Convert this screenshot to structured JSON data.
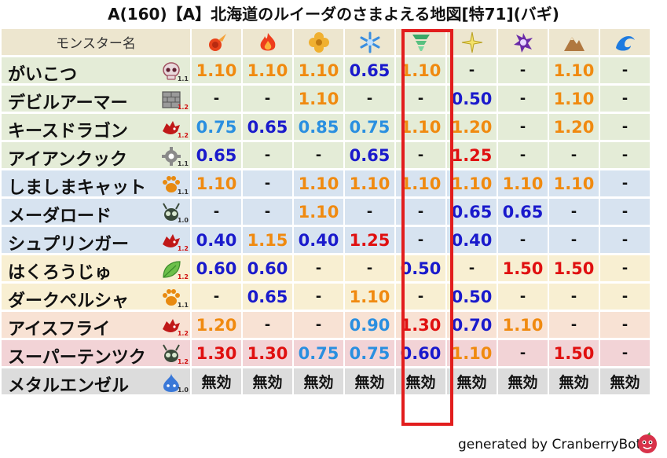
{
  "title": "A(160)【A】北海道のルイーダのさまよえる地図[特71](バギ)",
  "header": {
    "name_label": "モンスター名",
    "element_icons": [
      "fire-icon",
      "flame-icon",
      "clover-icon",
      "snowflake-icon",
      "tornado-icon",
      "sparkle-icon",
      "dark-swirl-icon",
      "mountain-icon",
      "wave-icon"
    ]
  },
  "rows": [
    {
      "name": "がいこつ",
      "type_icon": "skull-icon",
      "type_value": "1.1",
      "type_red": false,
      "bg": "green",
      "values": [
        {
          "t": "1.10",
          "c": "orange"
        },
        {
          "t": "1.10",
          "c": "orange"
        },
        {
          "t": "1.10",
          "c": "orange"
        },
        {
          "t": "0.65",
          "c": "navy"
        },
        {
          "t": "1.10",
          "c": "orange"
        },
        {
          "t": "-",
          "c": "dash"
        },
        {
          "t": "-",
          "c": "dash"
        },
        {
          "t": "1.10",
          "c": "orange"
        },
        {
          "t": "-",
          "c": "dash"
        }
      ]
    },
    {
      "name": "デビルアーマー",
      "type_icon": "brick-icon",
      "type_value": "1.2",
      "type_red": true,
      "bg": "green",
      "values": [
        {
          "t": "-",
          "c": "dash"
        },
        {
          "t": "-",
          "c": "dash"
        },
        {
          "t": "1.10",
          "c": "orange"
        },
        {
          "t": "-",
          "c": "dash"
        },
        {
          "t": "-",
          "c": "dash"
        },
        {
          "t": "0.50",
          "c": "navy"
        },
        {
          "t": "-",
          "c": "dash"
        },
        {
          "t": "1.10",
          "c": "orange"
        },
        {
          "t": "-",
          "c": "dash"
        }
      ]
    },
    {
      "name": "キースドラゴン",
      "type_icon": "dragon-icon",
      "type_value": "1.2",
      "type_red": true,
      "bg": "green",
      "values": [
        {
          "t": "0.75",
          "c": "sky"
        },
        {
          "t": "0.65",
          "c": "navy"
        },
        {
          "t": "0.85",
          "c": "sky"
        },
        {
          "t": "0.75",
          "c": "sky"
        },
        {
          "t": "1.10",
          "c": "orange"
        },
        {
          "t": "1.20",
          "c": "orange"
        },
        {
          "t": "-",
          "c": "dash"
        },
        {
          "t": "1.20",
          "c": "orange"
        },
        {
          "t": "-",
          "c": "dash"
        }
      ]
    },
    {
      "name": "アイアンクック",
      "type_icon": "gear-icon",
      "type_value": "1.1",
      "type_red": false,
      "bg": "green",
      "values": [
        {
          "t": "0.65",
          "c": "navy"
        },
        {
          "t": "-",
          "c": "dash"
        },
        {
          "t": "-",
          "c": "dash"
        },
        {
          "t": "0.65",
          "c": "navy"
        },
        {
          "t": "-",
          "c": "dash"
        },
        {
          "t": "1.25",
          "c": "red"
        },
        {
          "t": "-",
          "c": "dash"
        },
        {
          "t": "-",
          "c": "dash"
        },
        {
          "t": "-",
          "c": "dash"
        }
      ]
    },
    {
      "name": "しましまキャット",
      "type_icon": "paw-icon",
      "type_value": "1.1",
      "type_red": false,
      "bg": "blue",
      "values": [
        {
          "t": "1.10",
          "c": "orange"
        },
        {
          "t": "-",
          "c": "dash"
        },
        {
          "t": "1.10",
          "c": "orange"
        },
        {
          "t": "1.10",
          "c": "orange"
        },
        {
          "t": "1.10",
          "c": "orange"
        },
        {
          "t": "1.10",
          "c": "orange"
        },
        {
          "t": "1.10",
          "c": "orange"
        },
        {
          "t": "1.10",
          "c": "orange"
        },
        {
          "t": "-",
          "c": "dash"
        }
      ]
    },
    {
      "name": "メーダロード",
      "type_icon": "insect-icon",
      "type_value": "1.0",
      "type_red": false,
      "bg": "blue",
      "values": [
        {
          "t": "-",
          "c": "dash"
        },
        {
          "t": "-",
          "c": "dash"
        },
        {
          "t": "1.10",
          "c": "orange"
        },
        {
          "t": "-",
          "c": "dash"
        },
        {
          "t": "-",
          "c": "dash"
        },
        {
          "t": "0.65",
          "c": "navy"
        },
        {
          "t": "0.65",
          "c": "navy"
        },
        {
          "t": "-",
          "c": "dash"
        },
        {
          "t": "-",
          "c": "dash"
        }
      ]
    },
    {
      "name": "シュプリンガー",
      "type_icon": "dragon-icon",
      "type_value": "1.2",
      "type_red": true,
      "bg": "blue",
      "values": [
        {
          "t": "0.40",
          "c": "navy"
        },
        {
          "t": "1.15",
          "c": "orange"
        },
        {
          "t": "0.40",
          "c": "navy"
        },
        {
          "t": "1.25",
          "c": "red"
        },
        {
          "t": "-",
          "c": "dash"
        },
        {
          "t": "0.40",
          "c": "navy"
        },
        {
          "t": "-",
          "c": "dash"
        },
        {
          "t": "-",
          "c": "dash"
        },
        {
          "t": "-",
          "c": "dash"
        }
      ]
    },
    {
      "name": "はくろうじゅ",
      "type_icon": "leaf-icon",
      "type_value": "1.2",
      "type_red": true,
      "bg": "yellow",
      "values": [
        {
          "t": "0.60",
          "c": "navy"
        },
        {
          "t": "0.60",
          "c": "navy"
        },
        {
          "t": "-",
          "c": "dash"
        },
        {
          "t": "-",
          "c": "dash"
        },
        {
          "t": "0.50",
          "c": "navy"
        },
        {
          "t": "-",
          "c": "dash"
        },
        {
          "t": "1.50",
          "c": "red"
        },
        {
          "t": "1.50",
          "c": "red"
        },
        {
          "t": "-",
          "c": "dash"
        }
      ]
    },
    {
      "name": "ダークペルシャ",
      "type_icon": "paw-icon",
      "type_value": "1.1",
      "type_red": false,
      "bg": "yellow",
      "values": [
        {
          "t": "-",
          "c": "dash"
        },
        {
          "t": "0.65",
          "c": "navy"
        },
        {
          "t": "-",
          "c": "dash"
        },
        {
          "t": "1.10",
          "c": "orange"
        },
        {
          "t": "-",
          "c": "dash"
        },
        {
          "t": "0.50",
          "c": "navy"
        },
        {
          "t": "-",
          "c": "dash"
        },
        {
          "t": "-",
          "c": "dash"
        },
        {
          "t": "-",
          "c": "dash"
        }
      ]
    },
    {
      "name": "アイスフライ",
      "type_icon": "dragon-icon",
      "type_value": "1.2",
      "type_red": true,
      "bg": "peach",
      "values": [
        {
          "t": "1.20",
          "c": "orange"
        },
        {
          "t": "-",
          "c": "dash"
        },
        {
          "t": "-",
          "c": "dash"
        },
        {
          "t": "0.90",
          "c": "sky"
        },
        {
          "t": "1.30",
          "c": "red"
        },
        {
          "t": "0.70",
          "c": "navy"
        },
        {
          "t": "1.10",
          "c": "orange"
        },
        {
          "t": "-",
          "c": "dash"
        },
        {
          "t": "-",
          "c": "dash"
        }
      ]
    },
    {
      "name": "スーパーテンツク",
      "type_icon": "insect-icon",
      "type_value": "1.2",
      "type_red": true,
      "bg": "pink",
      "values": [
        {
          "t": "1.30",
          "c": "red"
        },
        {
          "t": "1.30",
          "c": "red"
        },
        {
          "t": "0.75",
          "c": "sky"
        },
        {
          "t": "0.75",
          "c": "sky"
        },
        {
          "t": "0.60",
          "c": "navy"
        },
        {
          "t": "1.10",
          "c": "orange"
        },
        {
          "t": "-",
          "c": "dash"
        },
        {
          "t": "1.50",
          "c": "red"
        },
        {
          "t": "-",
          "c": "dash"
        }
      ]
    },
    {
      "name": "メタルエンゼル",
      "type_icon": "slime-icon",
      "type_value": "1.0",
      "type_red": false,
      "bg": "gray",
      "values": [
        {
          "t": "無効",
          "c": "muko"
        },
        {
          "t": "無効",
          "c": "muko"
        },
        {
          "t": "無効",
          "c": "muko"
        },
        {
          "t": "無効",
          "c": "muko"
        },
        {
          "t": "無効",
          "c": "muko"
        },
        {
          "t": "無効",
          "c": "muko"
        },
        {
          "t": "無効",
          "c": "muko"
        },
        {
          "t": "無効",
          "c": "muko"
        },
        {
          "t": "無効",
          "c": "muko"
        }
      ]
    }
  ],
  "footer": {
    "generated_text": "generated by CranberryBot",
    "bot_icon": "cranberry-bot-icon"
  }
}
